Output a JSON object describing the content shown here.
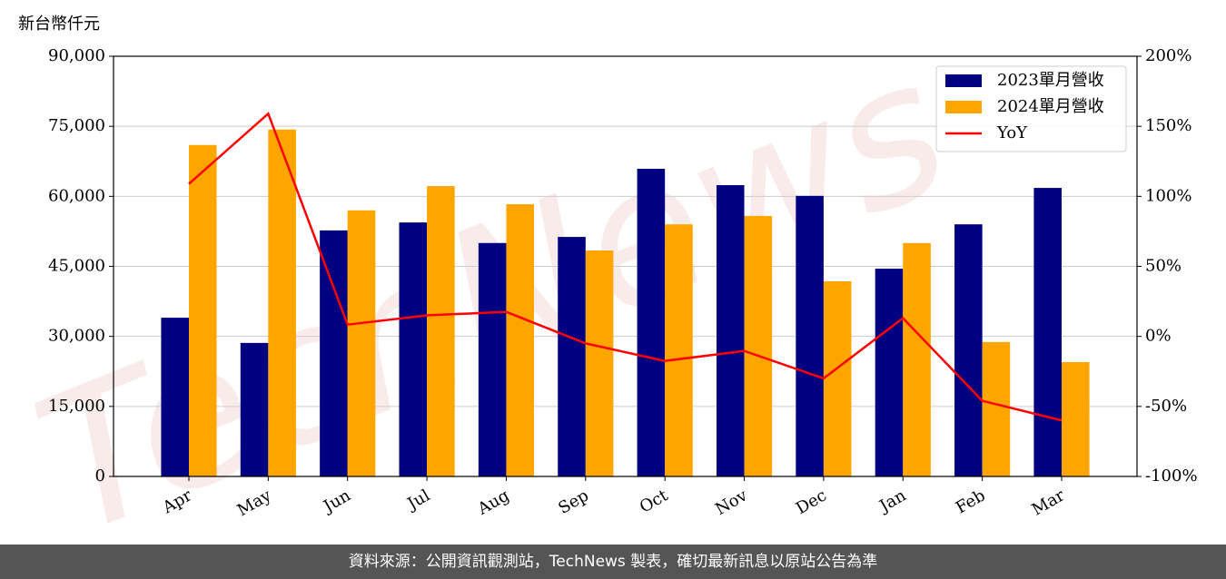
{
  "chart_data": {
    "type": "bar",
    "y_label": "新台幣仟元",
    "watermark": "TechNews",
    "footer": "資料來源：公開資訊觀測站，TechNews 製表，確切最新訊息以原站公告為準",
    "categories": [
      "Apr",
      "May",
      "Jun",
      "Jul",
      "Aug",
      "Sep",
      "Oct",
      "Nov",
      "Dec",
      "Jan",
      "Feb",
      "Mar"
    ],
    "series": [
      {
        "name": "2023單月營收",
        "type": "bar",
        "color": "#000080",
        "values": [
          34000,
          28600,
          52700,
          54400,
          50000,
          51300,
          65900,
          62400,
          60100,
          44500,
          54000,
          61800
        ]
      },
      {
        "name": "2024單月營收",
        "type": "bar",
        "color": "#ffa500",
        "values": [
          71000,
          74300,
          57000,
          62200,
          58300,
          48400,
          54000,
          55800,
          41800,
          50000,
          28800,
          24500
        ]
      },
      {
        "name": "YoY",
        "type": "line",
        "axis": "y2",
        "color": "#ff0000",
        "values": [
          108.9,
          159,
          8.4,
          15,
          17.5,
          -5,
          -17.5,
          -10.4,
          -30,
          13,
          -46,
          -60
        ]
      }
    ],
    "ylim": [
      0,
      90000
    ],
    "yticks": [
      0,
      {
        "value": 15000,
        "label": "15,000"
      },
      {
        "value": 30000,
        "label": "30,000"
      },
      {
        "value": 45000,
        "label": "45,000"
      },
      {
        "value": 60000,
        "label": "60,000"
      },
      {
        "value": 75000,
        "label": "75,000"
      },
      {
        "value": 90000,
        "label": "90,000"
      }
    ],
    "y2lim": [
      -100,
      200
    ],
    "y2ticks": [
      {
        "value": -100,
        "label": "-100%"
      },
      {
        "value": -50,
        "label": "-50%"
      },
      {
        "value": 0,
        "label": "0%"
      },
      {
        "value": 50,
        "label": "50%"
      },
      {
        "value": 100,
        "label": "100%"
      },
      {
        "value": 150,
        "label": "150%"
      },
      {
        "value": 200,
        "label": "200%"
      }
    ],
    "grid": true,
    "legend": "upper right"
  }
}
